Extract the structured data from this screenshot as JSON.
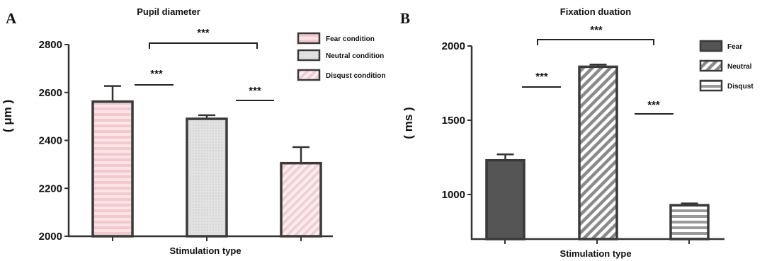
{
  "chart_data": [
    {
      "type": "bar",
      "panel": "A",
      "title": "Pupil diameter",
      "xlabel": "Stimulation type",
      "ylabel": "( μm )",
      "ylim": [
        2000,
        2800
      ],
      "yticks": [
        "2000",
        "2200",
        "2400",
        "2600",
        "2800"
      ],
      "categories": [
        "Fear condition",
        "Neutral condition",
        "Disgust condition"
      ],
      "values": [
        2562,
        2490,
        2305
      ],
      "errors": [
        65,
        15,
        67
      ],
      "colors": [
        "#f6d4d8",
        "#dcdcdc",
        "#f6d4d8"
      ],
      "legend": [
        "Fear condition",
        "Neutral condition",
        "Disqust condition"
      ],
      "legend_position": "top-right",
      "significance": [
        "***",
        "***",
        "***"
      ]
    },
    {
      "type": "bar",
      "panel": "B",
      "title": "Fixation duation",
      "xlabel": "Stimulation type",
      "ylabel": "( ms )",
      "ylim": [
        700,
        2000
      ],
      "yticks": [
        "1000",
        "1500",
        "2000"
      ],
      "categories": [
        "Fear",
        "Neutral",
        "Disgust"
      ],
      "values": [
        1230,
        1860,
        928
      ],
      "errors": [
        40,
        15,
        12
      ],
      "colors": [
        "#555555",
        "#ffffff",
        "#ffffff"
      ],
      "legend": [
        "Fear",
        "Neutral",
        "Disqust"
      ],
      "legend_position": "top-right",
      "significance": [
        "***",
        "***",
        "***"
      ]
    }
  ]
}
